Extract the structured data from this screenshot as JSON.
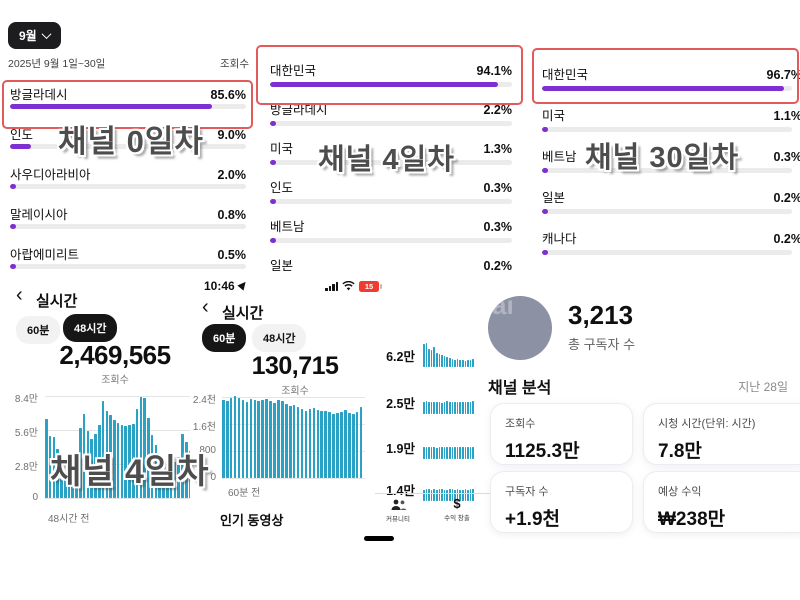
{
  "colors": {
    "purple": "#7d2fd2",
    "teal": "#2aa2c6",
    "annotation_red": "#e25b5b"
  },
  "overlays": {
    "day0": "채널 0일차",
    "day4": "채널 4일차",
    "day30": "채널 30일차",
    "chart_day4": "채널 4일차"
  },
  "geo_panels": [
    {
      "id": "day0",
      "month_chip": "9월",
      "date_range": "2025년 9월 1일~30일",
      "metric_label": "조회수",
      "rows": [
        {
          "country": "방글라데시",
          "pct_label": "85.6%",
          "pct": 85.6,
          "highlighted": true
        },
        {
          "country": "인도",
          "pct_label": "9.0%",
          "pct": 9.0,
          "highlighted": false
        },
        {
          "country": "사우디아라비아",
          "pct_label": "2.0%",
          "pct": 2.0,
          "highlighted": false
        },
        {
          "country": "말레이시아",
          "pct_label": "0.8%",
          "pct": 0.8,
          "highlighted": false
        },
        {
          "country": "아랍에미리트",
          "pct_label": "0.5%",
          "pct": 0.5,
          "highlighted": false
        }
      ]
    },
    {
      "id": "day4",
      "rows": [
        {
          "country": "대한민국",
          "pct_label": "94.1%",
          "pct": 94.1,
          "highlighted": true
        },
        {
          "country": "방글라데시",
          "pct_label": "2.2%",
          "pct": 2.2,
          "highlighted": false
        },
        {
          "country": "미국",
          "pct_label": "1.3%",
          "pct": 1.3,
          "highlighted": false
        },
        {
          "country": "인도",
          "pct_label": "0.3%",
          "pct": 0.3,
          "highlighted": false
        },
        {
          "country": "베트남",
          "pct_label": "0.3%",
          "pct": 0.3,
          "highlighted": false
        },
        {
          "country": "일본",
          "pct_label": "0.2%",
          "pct": 0.2,
          "highlighted": false
        }
      ]
    },
    {
      "id": "day30",
      "rows": [
        {
          "country": "대한민국",
          "pct_label": "96.7%",
          "pct": 96.7,
          "highlighted": true
        },
        {
          "country": "미국",
          "pct_label": "1.1%",
          "pct": 1.1,
          "highlighted": false
        },
        {
          "country": "베트남",
          "pct_label": "0.3%",
          "pct": 0.3,
          "highlighted": false
        },
        {
          "country": "일본",
          "pct_label": "0.2%",
          "pct": 0.2,
          "highlighted": false
        },
        {
          "country": "캐나다",
          "pct_label": "0.2%",
          "pct": 0.2,
          "highlighted": false
        }
      ]
    }
  ],
  "realtime_48h": {
    "back_icon": "‹",
    "title": "실시간",
    "tabs": [
      {
        "label": "60분",
        "selected": false
      },
      {
        "label": "48시간",
        "selected": true
      }
    ],
    "views": "2,469,565",
    "views_label": "조회수",
    "yticks": [
      "8.4만",
      "5.6만",
      "2.8만",
      "0"
    ],
    "ymax": 8.4,
    "xlabel": "48시간 전",
    "bars": [
      6.5,
      5.1,
      5.0,
      4.0,
      2.6,
      2.3,
      2.1,
      2.3,
      2.7,
      5.8,
      6.9,
      5.5,
      4.9,
      5.3,
      6.0,
      8.0,
      7.2,
      6.8,
      6.4,
      6.2,
      6.0,
      5.9,
      6.0,
      6.1,
      7.3,
      8.3,
      8.2,
      6.6,
      5.2,
      4.4,
      2.4,
      2.1,
      2.3,
      2.6,
      3.0,
      3.4,
      5.3,
      4.6,
      3.9,
      3.6
    ]
  },
  "realtime_60m": {
    "status": {
      "time": "10:46",
      "battery": "15"
    },
    "back_icon": "‹",
    "title": "실시간",
    "tabs": [
      {
        "label": "60분",
        "selected": true
      },
      {
        "label": "48시간",
        "selected": false
      }
    ],
    "views": "130,715",
    "views_label": "조회수",
    "yticks": [
      "2.4천",
      "1.6천",
      "800",
      "0"
    ],
    "ymax": 2.4,
    "xlabel": "60분 전",
    "bars": [
      2.3,
      2.28,
      2.36,
      2.42,
      2.37,
      2.3,
      2.26,
      2.33,
      2.3,
      2.27,
      2.31,
      2.34,
      2.28,
      2.22,
      2.3,
      2.27,
      2.18,
      2.12,
      2.16,
      2.1,
      2.05,
      2.0,
      2.04,
      2.08,
      2.02,
      1.98,
      2.0,
      1.96,
      1.9,
      1.94,
      1.97,
      2.02,
      1.92,
      1.9,
      1.96,
      2.1
    ],
    "popular_label": "인기 동영상"
  },
  "popular_videos": {
    "items": [
      {
        "views": "6.2만",
        "spark": [
          0.95,
          1.0,
          0.75,
          0.7,
          0.85,
          0.6,
          0.55,
          0.5,
          0.45,
          0.4,
          0.38,
          0.35,
          0.3,
          0.32,
          0.28,
          0.3,
          0.26,
          0.3,
          0.28,
          0.32
        ]
      },
      {
        "views": "2.5만",
        "spark": [
          0.5,
          0.55,
          0.52,
          0.5,
          0.48,
          0.52,
          0.5,
          0.47,
          0.5,
          0.53,
          0.5,
          0.48,
          0.5,
          0.52,
          0.49,
          0.5,
          0.48,
          0.52,
          0.5,
          0.55
        ]
      },
      {
        "views": "1.9만",
        "spark": [
          0.48,
          0.5,
          0.52,
          0.49,
          0.5,
          0.47,
          0.5,
          0.52,
          0.5,
          0.48,
          0.5,
          0.51,
          0.49,
          0.5,
          0.52,
          0.48,
          0.5,
          0.49,
          0.52,
          0.5
        ]
      },
      {
        "views": "1.4만",
        "spark": [
          0.45,
          0.48,
          0.5,
          0.47,
          0.49,
          0.46,
          0.48,
          0.5,
          0.47,
          0.45,
          0.48,
          0.5,
          0.46,
          0.48,
          0.45,
          0.47,
          0.5,
          0.46,
          0.48,
          0.5
        ]
      }
    ],
    "nav": [
      {
        "label": "커뮤니티",
        "icon": "people-icon"
      },
      {
        "label": "수익 창출",
        "icon": "dollar-icon",
        "glyph": "$"
      }
    ]
  },
  "channel_summary": {
    "avatar_text": "ai",
    "subscribers": "3,213",
    "subscribers_label": "총 구독자 수",
    "section_title": "채널 분석",
    "period": "지난 28일",
    "cards": [
      {
        "label": "조회수",
        "value": "1125.3만"
      },
      {
        "label": "시청 시간(단위: 시간)",
        "value": "7.8만"
      },
      {
        "label": "구독자 수",
        "value": "+1.9천"
      },
      {
        "label": "예상 수익",
        "value": "₩238만"
      }
    ]
  }
}
